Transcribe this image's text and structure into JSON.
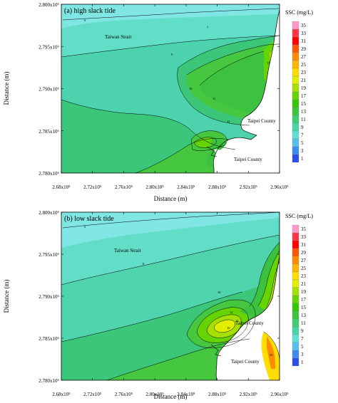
{
  "chart_data": [
    {
      "type": "contour",
      "title": "(a) high slack tide",
      "xlabel": "Distance (m)",
      "ylabel": "Distance (m)",
      "x_ticks": [
        "2.68x10⁵",
        "2.72x10⁵",
        "2.76x10⁵",
        "2.80x10⁵",
        "2.84x10⁵",
        "2.88x10⁵",
        "2.92x10⁵",
        "2.96x10⁵"
      ],
      "y_ticks": [
        "2.780x10⁶",
        "2.785x10⁶",
        "2.790x10⁶",
        "2.795x10⁶",
        "2.800x10⁶"
      ],
      "xlim": [
        268000,
        296000
      ],
      "ylim": [
        2780000,
        2800000
      ],
      "annotations": [
        "Taiwan Strait",
        "Taipei County",
        "Taipei County"
      ],
      "contour_labels": [
        "6",
        "7",
        "8",
        "9",
        "10",
        "11",
        "12",
        "13"
      ]
    },
    {
      "type": "contour",
      "title": "(b) low slack tide",
      "xlabel": "Distance (m)",
      "ylabel": "Distance (m)",
      "x_ticks": [
        "2.68x10⁵",
        "2.72x10⁵",
        "2.76x10⁵",
        "2.80x10⁵",
        "2.84x10⁵",
        "2.88x10⁵",
        "2.92x10⁵",
        "2.96x10⁵"
      ],
      "y_ticks": [
        "2.780x10⁶",
        "2.785x10⁶",
        "2.790x10⁶",
        "2.795x10⁶",
        "2.800x10⁶"
      ],
      "xlim": [
        268000,
        296000
      ],
      "ylim": [
        2780000,
        2800000
      ],
      "annotations": [
        "Taiwan Strait",
        "Taipei County",
        "Taipei County"
      ],
      "contour_labels": [
        "6",
        "8",
        "10",
        "12",
        "14",
        "16",
        "20"
      ]
    }
  ],
  "colorbar": {
    "title": "SSC (mg/L)",
    "levels": [
      "35",
      "33",
      "31",
      "29",
      "27",
      "25",
      "23",
      "21",
      "19",
      "17",
      "15",
      "13",
      "11",
      "9",
      "7",
      "5",
      "3",
      "1"
    ],
    "colors": [
      "#ff99cc",
      "#ff3344",
      "#ff0000",
      "#ff5500",
      "#ff8c00",
      "#ffb400",
      "#ffdd00",
      "#e0ee00",
      "#a6e000",
      "#66d400",
      "#33c800",
      "#3cc63c",
      "#40cc70",
      "#44d6a6",
      "#5ee0d2",
      "#55c0ee",
      "#3c8cf0",
      "#2a4ee8"
    ]
  }
}
